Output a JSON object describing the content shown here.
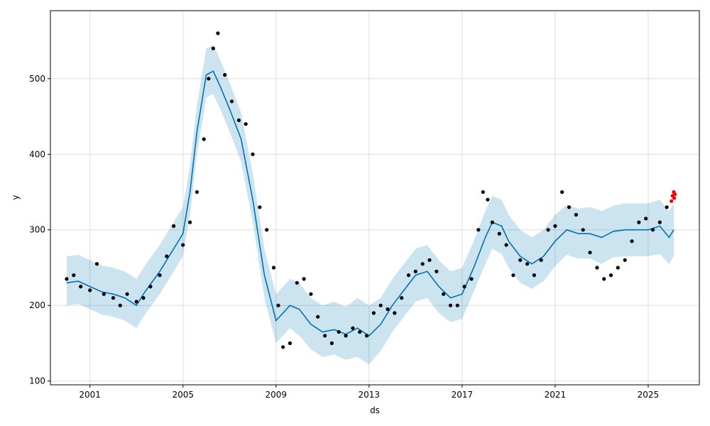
{
  "chart_data": {
    "type": "line",
    "xlabel": "ds",
    "ylabel": "y",
    "xlim": [
      1999.3,
      2027.2
    ],
    "ylim": [
      95,
      590
    ],
    "grid": true,
    "x_ticks": [
      2001,
      2005,
      2009,
      2013,
      2017,
      2021,
      2025
    ],
    "x_tick_labels": [
      "2001",
      "2005",
      "2009",
      "2013",
      "2017",
      "2021",
      "2025"
    ],
    "y_ticks": [
      100,
      200,
      300,
      400,
      500
    ],
    "y_tick_labels": [
      "100",
      "200",
      "300",
      "400",
      "500"
    ],
    "colors": {
      "observed": "#000000",
      "recent_observed": "#ff0000",
      "forecast": "#0072b2",
      "uncertainty": "#0072b2"
    },
    "series": [
      {
        "kind": "forecast",
        "x": [
          2000.0,
          2000.5,
          2001.0,
          2001.5,
          2002.0,
          2002.5,
          2003.0,
          2003.3,
          2003.6,
          2004.0,
          2004.5,
          2005.0,
          2005.3,
          2005.6,
          2006.0,
          2006.3,
          2006.6,
          2007.0,
          2007.5,
          2008.0,
          2008.5,
          2009.0,
          2009.3,
          2009.6,
          2010.0,
          2010.5,
          2011.0,
          2011.5,
          2012.0,
          2012.5,
          2013.0,
          2013.5,
          2014.0,
          2014.5,
          2015.0,
          2015.5,
          2016.0,
          2016.5,
          2017.0,
          2017.5,
          2018.0,
          2018.3,
          2018.7,
          2019.0,
          2019.5,
          2020.0,
          2020.5,
          2021.0,
          2021.5,
          2022.0,
          2022.5,
          2023.0,
          2023.5,
          2024.0,
          2024.5,
          2025.0,
          2025.5,
          2025.9,
          2026.1
        ],
        "yhat": [
          230,
          232,
          225,
          218,
          215,
          210,
          200,
          215,
          228,
          245,
          270,
          295,
          350,
          430,
          505,
          510,
          490,
          460,
          420,
          340,
          240,
          180,
          190,
          200,
          195,
          175,
          165,
          168,
          162,
          170,
          160,
          175,
          200,
          220,
          240,
          245,
          225,
          210,
          215,
          250,
          290,
          310,
          305,
          285,
          265,
          255,
          265,
          285,
          300,
          295,
          295,
          290,
          298,
          300,
          300,
          300,
          305,
          290,
          300
        ],
        "lower": [
          200,
          202,
          195,
          188,
          185,
          180,
          170,
          185,
          198,
          215,
          240,
          265,
          320,
          400,
          475,
          480,
          460,
          430,
          390,
          310,
          210,
          150,
          160,
          170,
          160,
          142,
          132,
          135,
          128,
          132,
          122,
          140,
          165,
          185,
          205,
          210,
          190,
          178,
          182,
          218,
          255,
          275,
          268,
          250,
          230,
          222,
          232,
          252,
          267,
          262,
          262,
          255,
          264,
          265,
          265,
          265,
          268,
          255,
          265
        ],
        "upper": [
          265,
          267,
          260,
          253,
          250,
          245,
          235,
          250,
          263,
          280,
          305,
          330,
          385,
          465,
          540,
          545,
          525,
          495,
          455,
          375,
          275,
          215,
          225,
          235,
          230,
          210,
          200,
          205,
          198,
          210,
          200,
          210,
          235,
          255,
          275,
          280,
          260,
          245,
          250,
          285,
          325,
          345,
          340,
          320,
          300,
          290,
          300,
          320,
          333,
          328,
          330,
          325,
          332,
          335,
          335,
          335,
          340,
          325,
          335
        ]
      },
      {
        "kind": "observed",
        "x": [
          2000.0,
          2000.3,
          2000.6,
          2001.0,
          2001.3,
          2001.6,
          2002.0,
          2002.3,
          2002.6,
          2003.0,
          2003.3,
          2003.6,
          2004.0,
          2004.3,
          2004.6,
          2005.0,
          2005.3,
          2005.6,
          2005.9,
          2006.1,
          2006.3,
          2006.5,
          2006.8,
          2007.1,
          2007.4,
          2007.7,
          2008.0,
          2008.3,
          2008.6,
          2008.9,
          2009.1,
          2009.3,
          2009.6,
          2009.9,
          2010.2,
          2010.5,
          2010.8,
          2011.1,
          2011.4,
          2011.7,
          2012.0,
          2012.3,
          2012.6,
          2012.9,
          2013.2,
          2013.5,
          2013.8,
          2014.1,
          2014.4,
          2014.7,
          2015.0,
          2015.3,
          2015.6,
          2015.9,
          2016.2,
          2016.5,
          2016.8,
          2017.1,
          2017.4,
          2017.7,
          2017.9,
          2018.1,
          2018.3,
          2018.6,
          2018.9,
          2019.2,
          2019.5,
          2019.8,
          2020.1,
          2020.4,
          2020.7,
          2021.0,
          2021.3,
          2021.6,
          2021.9,
          2022.2,
          2022.5,
          2022.8,
          2023.1,
          2023.4,
          2023.7,
          2024.0,
          2024.3,
          2024.6,
          2024.9,
          2025.2,
          2025.5,
          2025.8
        ],
        "y": [
          235,
          240,
          225,
          220,
          255,
          215,
          210,
          200,
          215,
          205,
          210,
          225,
          240,
          265,
          305,
          280,
          310,
          350,
          420,
          500,
          540,
          560,
          505,
          470,
          445,
          440,
          400,
          330,
          300,
          250,
          200,
          145,
          150,
          230,
          235,
          215,
          185,
          160,
          150,
          165,
          160,
          170,
          165,
          160,
          190,
          200,
          195,
          190,
          210,
          240,
          245,
          255,
          260,
          245,
          215,
          200,
          200,
          225,
          235,
          300,
          350,
          340,
          310,
          295,
          280,
          240,
          260,
          255,
          240,
          260,
          300,
          305,
          350,
          330,
          320,
          300,
          270,
          250,
          235,
          240,
          250,
          260,
          285,
          310,
          315,
          300,
          310,
          330
        ]
      },
      {
        "kind": "recent_observed",
        "x": [
          2026.0,
          2026.05,
          2026.1,
          2026.12,
          2026.15
        ],
        "y": [
          338,
          345,
          350,
          342,
          347
        ]
      }
    ]
  }
}
